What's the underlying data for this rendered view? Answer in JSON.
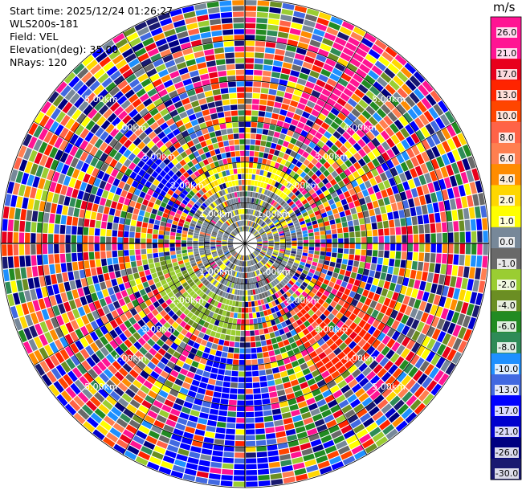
{
  "info": {
    "start_time": "Start time: 2025/12/24 01:26:27",
    "instrument": "WLS200s-181",
    "field": "Field: VEL",
    "elevation": "Elevation(deg): 35.00",
    "nrays": "NRays: 120"
  },
  "colorbar": {
    "unit": "m/s",
    "labels": [
      "26.0",
      "21.0",
      "17.0",
      "13.0",
      "10.0",
      "8.0",
      "6.0",
      "4.0",
      "2.0",
      "1.0",
      "0.0",
      "-1.0",
      "-2.0",
      "-4.0",
      "-6.0",
      "-8.0",
      "-10.0",
      "-13.0",
      "-17.0",
      "-21.0",
      "-26.0",
      "-30.0"
    ],
    "colors": [
      "#ff1493",
      "#ff1493",
      "#e8001c",
      "#ff2400",
      "#ff4500",
      "#ff6347",
      "#ff7f50",
      "#ff8c00",
      "#ffd700",
      "#ffff00",
      "#778899",
      "#696969",
      "#9acd32",
      "#6b8e23",
      "#228b22",
      "#2e8b57",
      "#1e90ff",
      "#4169e1",
      "#0000ff",
      "#0000cd",
      "#000080",
      "#191970"
    ]
  },
  "chart_data": {
    "type": "heatmap",
    "projection": "polar (PPI)",
    "field": "VEL",
    "unit": "m/s",
    "elevation_deg": 35.0,
    "nrays": 120,
    "range_ring_labels": [
      "1.00km",
      "2.00km",
      "3.00km",
      "4.00km",
      "5.00km"
    ],
    "range_rings_km": [
      1,
      2,
      3,
      4,
      5
    ],
    "max_range_km": 6.0,
    "color_levels": [
      -30,
      -26,
      -21,
      -17,
      -13,
      -10,
      -8,
      -6,
      -4,
      -2,
      -1,
      0,
      1,
      2,
      4,
      6,
      8,
      10,
      13,
      17,
      21,
      26
    ]
  }
}
